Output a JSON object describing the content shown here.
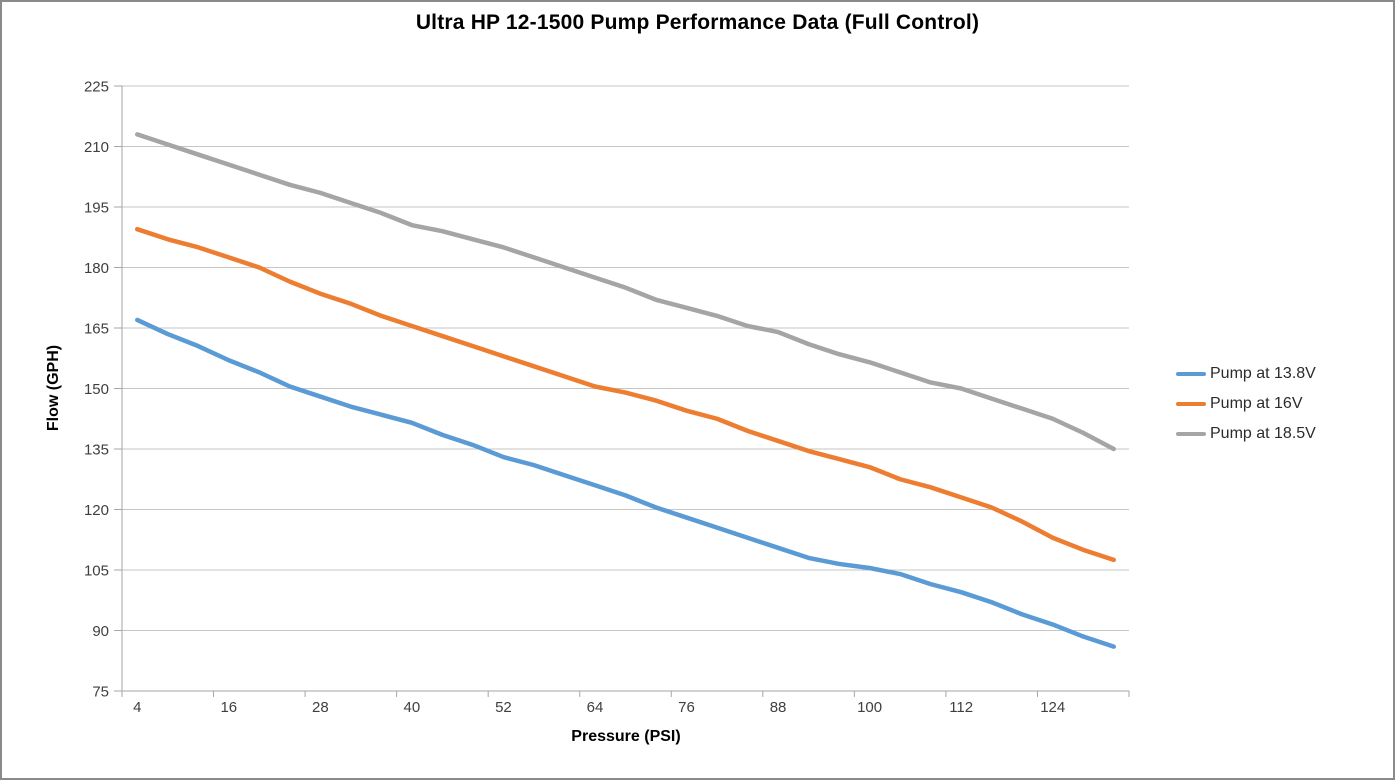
{
  "chart_data": {
    "type": "line",
    "title": "Ultra HP 12-1500 Pump Performance Data (Full Control)",
    "xlabel": "Pressure (PSI)",
    "ylabel": "Flow (GPH)",
    "x": [
      4,
      8,
      12,
      16,
      20,
      24,
      28,
      32,
      36,
      40,
      44,
      48,
      52,
      56,
      60,
      64,
      68,
      72,
      76,
      80,
      84,
      88,
      92,
      96,
      100,
      104,
      108,
      112,
      116,
      120,
      124,
      128,
      132
    ],
    "xticks": [
      4,
      16,
      28,
      40,
      52,
      64,
      76,
      88,
      100,
      112,
      124
    ],
    "yticks": [
      75,
      90,
      105,
      120,
      135,
      150,
      165,
      180,
      195,
      210,
      225
    ],
    "ylim": [
      75,
      225
    ],
    "grid": "horizontal",
    "legend_position": "right",
    "series": [
      {
        "name": "Pump at 13.8V",
        "color": "#5B9BD5",
        "values": [
          167,
          163.5,
          160.5,
          157,
          154,
          150.5,
          148,
          145.5,
          143.5,
          141.5,
          138.5,
          136,
          133,
          131,
          128.5,
          126,
          123.5,
          120.5,
          118,
          115.5,
          113,
          110.5,
          108,
          106.5,
          105.5,
          104,
          101.5,
          99.5,
          97,
          94,
          91.5,
          88.5,
          86
        ]
      },
      {
        "name": "Pump at 16V",
        "color": "#ED7D31",
        "values": [
          189.5,
          187,
          185,
          182.5,
          180,
          176.5,
          173.5,
          171,
          168,
          165.5,
          163,
          160.5,
          158,
          155.5,
          153,
          150.5,
          149,
          147,
          144.5,
          142.5,
          139.5,
          137,
          134.5,
          132.5,
          130.5,
          127.5,
          125.5,
          123,
          120.5,
          117,
          113,
          110,
          107.5
        ]
      },
      {
        "name": "Pump at 18.5V",
        "color": "#A5A5A5",
        "values": [
          213,
          210.5,
          208,
          205.5,
          203,
          200.5,
          198.5,
          196,
          193.5,
          190.5,
          189,
          187,
          185,
          182.5,
          180,
          177.5,
          175,
          172,
          170,
          168,
          165.5,
          164,
          161,
          158.5,
          156.5,
          154,
          151.5,
          150,
          147.5,
          145,
          142.5,
          139,
          135
        ]
      }
    ],
    "colors": {
      "gridline": "#C6C6C6",
      "axis": "#A6A6A6",
      "tick_label": "#3F3F3F",
      "title_text": "#000000"
    }
  }
}
